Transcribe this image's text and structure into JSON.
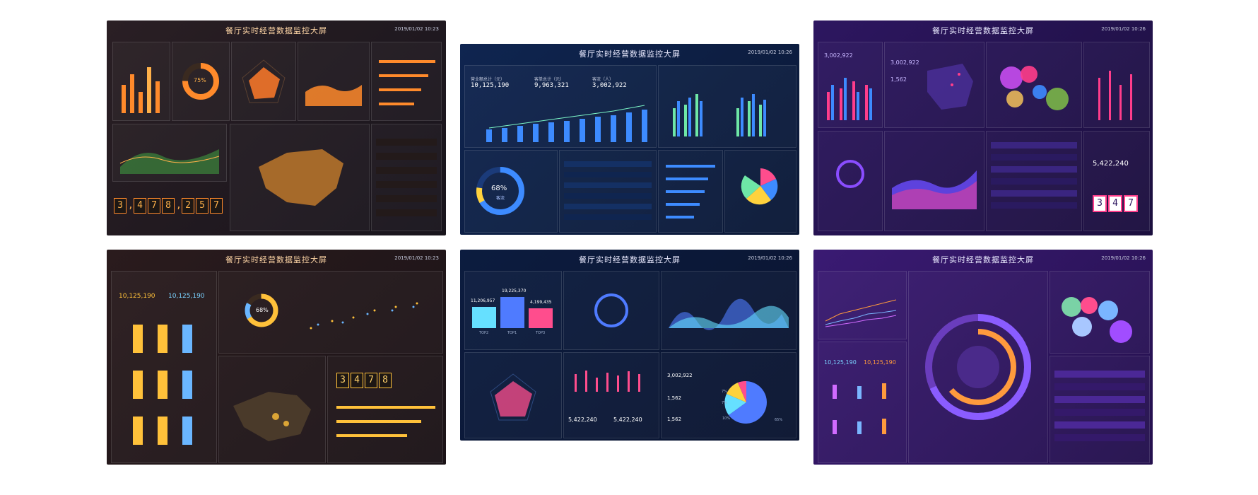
{
  "title": "餐厅实时经营数据监控大屏",
  "date_short": "2019/01/02 10:26",
  "date_alt": "2019/01/02 10:23",
  "colors": {
    "orange": "#ff8a2b",
    "blue": "#2f7dff",
    "purple": "#7a4cff",
    "pink": "#ff3d8b"
  },
  "panels": {
    "p1": {
      "donut_pct": "75%",
      "digits": [
        "3",
        ",",
        "4",
        "7",
        "8",
        ",",
        "2",
        "5",
        "7"
      ]
    },
    "p2": {
      "stats": [
        {
          "label": "营业额总计（元）",
          "value": "10,125,190"
        },
        {
          "label": "客单总计（元）",
          "value": "9,963,321"
        },
        {
          "label": "客流（人）",
          "value": "3,002,922"
        }
      ],
      "donut_pct": "68%",
      "donut_sub": "客流"
    },
    "p3": {
      "v1": "3,002,922",
      "v2": "3,002,922",
      "v3": "1,562",
      "total": "5,422,240",
      "digits": [
        "3",
        "4",
        "7"
      ]
    },
    "p4": {
      "v1": "10,125,190",
      "v2": "10,125,190",
      "donut_pct": "68%",
      "digits": [
        "3",
        "4",
        "7",
        "8"
      ]
    },
    "p5": {
      "bars": [
        {
          "label": "11,206,957",
          "x": "TOP2"
        },
        {
          "label": "19,225,370",
          "x": "TOP1"
        },
        {
          "label": "4,199,435",
          "x": "TOP3"
        }
      ],
      "v1": "3,002,922",
      "v2": "1,562",
      "v3": "1,562",
      "money1": "5,422,240",
      "money2": "5,422,240",
      "pie_labels": [
        "7%",
        "7%",
        "10%",
        "65%"
      ]
    },
    "p6": {
      "v1": "10,125,190",
      "v2": "10,125,190"
    }
  }
}
